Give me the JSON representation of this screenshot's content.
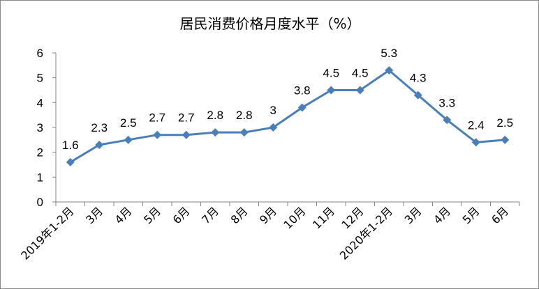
{
  "chart_data": {
    "type": "line",
    "title": "居民消费价格月度水平（%）",
    "xlabel": "",
    "ylabel": "",
    "categories": [
      "2019年1-2月",
      "3月",
      "4月",
      "5月",
      "6月",
      "7月",
      "8月",
      "9月",
      "10月",
      "11月",
      "12月",
      "2020年1-2月",
      "3月",
      "4月",
      "5月",
      "6月"
    ],
    "series": [
      {
        "values": [
          1.6,
          2.3,
          2.5,
          2.7,
          2.7,
          2.8,
          2.8,
          3,
          3.8,
          4.5,
          4.5,
          5.3,
          4.3,
          3.3,
          2.4,
          2.5
        ]
      }
    ],
    "data_labels": [
      "1.6",
      "2.3",
      "2.5",
      "2.7",
      "2.7",
      "2.8",
      "2.8",
      "3",
      "3.8",
      "4.5",
      "4.5",
      "5.3",
      "4.3",
      "3.3",
      "2.4",
      "2.5"
    ],
    "yticks": [
      "0",
      "1",
      "2",
      "3",
      "4",
      "5",
      "6"
    ],
    "ylim": [
      0,
      6
    ],
    "grid": false,
    "legend": "none",
    "colors": {
      "line": "#4a7ebb",
      "axis": "#868686"
    }
  }
}
